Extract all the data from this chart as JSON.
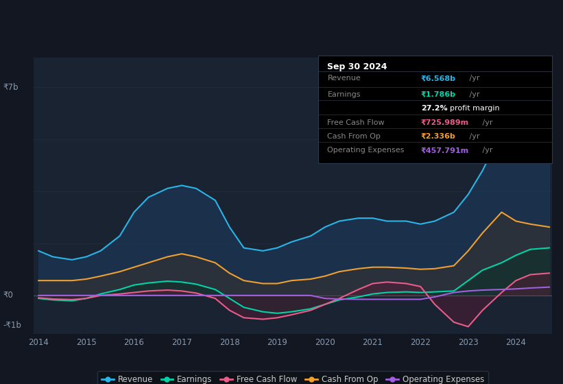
{
  "background_color": "#131722",
  "plot_bg_color": "#131722",
  "chart_bg": "#1a2332",
  "grid_color": "#1e2d3d",
  "title": "Sep 30 2024",
  "y_label_top": "₹7b",
  "y_label_zero": "₹0",
  "y_label_neg": "-₹1b",
  "ylim": [
    -1.3,
    8.0
  ],
  "years": [
    2014,
    2014.3,
    2014.7,
    2015,
    2015.3,
    2015.7,
    2016,
    2016.3,
    2016.7,
    2017,
    2017.3,
    2017.7,
    2018,
    2018.3,
    2018.7,
    2019,
    2019.3,
    2019.7,
    2020,
    2020.3,
    2020.7,
    2021,
    2021.3,
    2021.7,
    2022,
    2022.3,
    2022.7,
    2023,
    2023.3,
    2023.7,
    2024,
    2024.3,
    2024.7
  ],
  "revenue": [
    1.5,
    1.3,
    1.2,
    1.3,
    1.5,
    2.0,
    2.8,
    3.3,
    3.6,
    3.7,
    3.6,
    3.2,
    2.3,
    1.6,
    1.5,
    1.6,
    1.8,
    2.0,
    2.3,
    2.5,
    2.6,
    2.6,
    2.5,
    2.5,
    2.4,
    2.5,
    2.8,
    3.4,
    4.2,
    5.5,
    6.5,
    7.2,
    7.4
  ],
  "earnings": [
    -0.1,
    -0.15,
    -0.18,
    -0.1,
    0.05,
    0.2,
    0.35,
    0.42,
    0.48,
    0.45,
    0.38,
    0.2,
    -0.1,
    -0.4,
    -0.55,
    -0.6,
    -0.55,
    -0.45,
    -0.3,
    -0.15,
    -0.05,
    0.05,
    0.1,
    0.12,
    0.1,
    0.12,
    0.15,
    0.5,
    0.85,
    1.1,
    1.35,
    1.55,
    1.6
  ],
  "free_cash_flow": [
    -0.08,
    -0.12,
    -0.14,
    -0.1,
    0.0,
    0.05,
    0.1,
    0.15,
    0.18,
    0.15,
    0.08,
    -0.1,
    -0.5,
    -0.75,
    -0.8,
    -0.75,
    -0.65,
    -0.5,
    -0.3,
    -0.1,
    0.2,
    0.4,
    0.45,
    0.4,
    0.3,
    -0.3,
    -0.9,
    -1.05,
    -0.5,
    0.1,
    0.5,
    0.7,
    0.75
  ],
  "cash_from_op": [
    0.5,
    0.5,
    0.5,
    0.55,
    0.65,
    0.8,
    0.95,
    1.1,
    1.3,
    1.4,
    1.3,
    1.1,
    0.75,
    0.5,
    0.4,
    0.4,
    0.5,
    0.55,
    0.65,
    0.8,
    0.9,
    0.95,
    0.95,
    0.92,
    0.88,
    0.9,
    1.0,
    1.5,
    2.1,
    2.8,
    2.5,
    2.4,
    2.3
  ],
  "operating_expenses": [
    0.0,
    0.0,
    0.0,
    0.0,
    0.0,
    0.0,
    0.0,
    0.0,
    0.0,
    0.0,
    0.0,
    0.0,
    0.0,
    0.0,
    0.0,
    0.0,
    0.0,
    0.0,
    -0.1,
    -0.12,
    -0.13,
    -0.13,
    -0.13,
    -0.13,
    -0.13,
    -0.05,
    0.1,
    0.15,
    0.18,
    0.2,
    0.22,
    0.25,
    0.28
  ],
  "revenue_color": "#29b5e8",
  "earnings_color": "#00d4a8",
  "free_cash_flow_color": "#e85d8a",
  "cash_from_op_color": "#f0a030",
  "operating_expenses_color": "#a060e0",
  "revenue_fill": "#1a3a5c",
  "earnings_fill": "#0a3028",
  "free_cash_flow_fill": "#5a1a35",
  "cash_from_op_fill": "#333333",
  "info_box": {
    "title": "Sep 30 2024",
    "rows": [
      {
        "label": "Revenue",
        "value": "₹6.568b",
        "value_color": "#29b5e8"
      },
      {
        "label": "Earnings",
        "value": "₹1.786b",
        "value_color": "#00d4a8"
      },
      {
        "label": "",
        "value": "27.2% profit margin",
        "value_color": "#ffffff"
      },
      {
        "label": "Free Cash Flow",
        "value": "₹725.989m",
        "value_color": "#e85d8a"
      },
      {
        "label": "Cash From Op",
        "value": "₹2.336b",
        "value_color": "#f0a030"
      },
      {
        "label": "Operating Expenses",
        "value": "₹457.791m",
        "value_color": "#a060e0"
      }
    ]
  },
  "legend_items": [
    {
      "label": "Revenue",
      "color": "#29b5e8"
    },
    {
      "label": "Earnings",
      "color": "#00d4a8"
    },
    {
      "label": "Free Cash Flow",
      "color": "#e85d8a"
    },
    {
      "label": "Cash From Op",
      "color": "#f0a030"
    },
    {
      "label": "Operating Expenses",
      "color": "#a060e0"
    }
  ],
  "xticks": [
    2014,
    2015,
    2016,
    2017,
    2018,
    2019,
    2020,
    2021,
    2022,
    2023,
    2024
  ]
}
